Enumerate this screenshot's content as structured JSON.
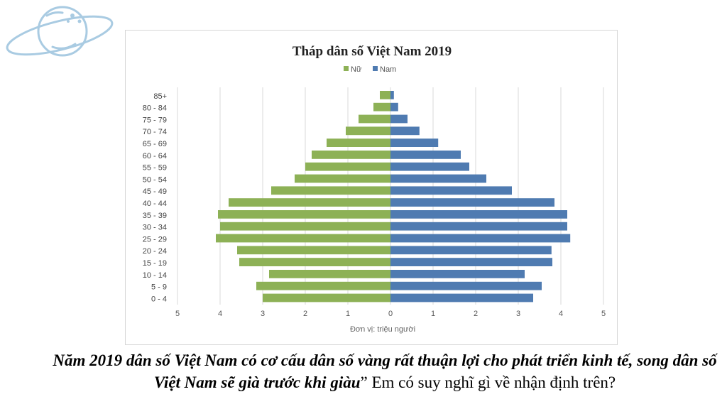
{
  "colors": {
    "female": "#8db156",
    "male": "#4f7bb1",
    "planet": "#a9cbe2"
  },
  "chart_data": {
    "type": "bar",
    "orientation": "horizontal-population-pyramid",
    "title": "Tháp dân số Việt Nam 2019",
    "xlabel": "Đơn vị: triệu người",
    "categories": [
      "85+",
      "80 - 84",
      "75 - 79",
      "70 - 74",
      "65 - 69",
      "60 - 64",
      "55 - 59",
      "50 - 54",
      "45 - 49",
      "40 - 44",
      "35 - 39",
      "30 - 34",
      "25 - 29",
      "20 - 24",
      "15 - 19",
      "10 - 14",
      "5 - 9",
      "0 - 4"
    ],
    "series": [
      {
        "name": "Nữ",
        "values": [
          0.25,
          0.4,
          0.75,
          1.05,
          1.5,
          1.85,
          2.0,
          2.25,
          2.8,
          3.8,
          4.05,
          4.0,
          4.1,
          3.6,
          3.55,
          2.85,
          3.15,
          3.0
        ]
      },
      {
        "name": "Nam",
        "values": [
          0.08,
          0.18,
          0.4,
          0.68,
          1.12,
          1.65,
          1.85,
          2.25,
          2.85,
          3.85,
          4.15,
          4.15,
          4.22,
          3.78,
          3.8,
          3.15,
          3.55,
          3.35
        ]
      }
    ],
    "xticks": [
      "5",
      "4",
      "3",
      "2",
      "1",
      "0",
      "1",
      "2",
      "3",
      "4",
      "5"
    ],
    "xlim": [
      -5,
      5
    ],
    "grid": true,
    "legend": "top-center"
  },
  "caption": {
    "emph": "Năm 2019 dân số Việt Nam có cơ cấu dân số vàng rất thuận lợi cho phát triển kinh tế, song dân số Việt Nam sẽ già trước khi giàu",
    "rest": "” Em có suy nghĩ gì về nhận định trên?"
  }
}
